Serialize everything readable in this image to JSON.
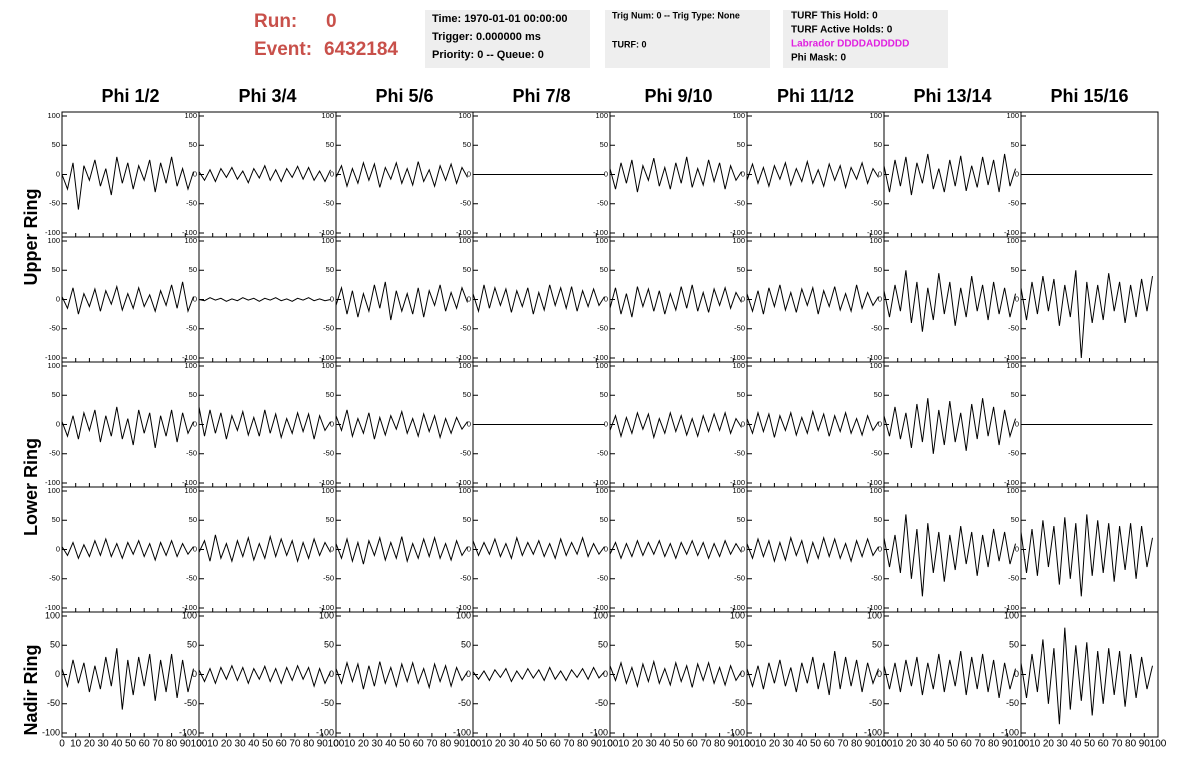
{
  "header": {
    "run_label": "Run:",
    "run": "0",
    "event_label": "Event:",
    "event": "6432184",
    "box1": [
      "Time: 1970-01-01 00:00:00",
      "Trigger: 0.000000 ms",
      "Priority: 0 -- Queue: 0"
    ],
    "box2": [
      "Trig Num: 0 -- Trig Type: None",
      "TURF: 0"
    ],
    "box3": [
      "TURF This Hold: 0",
      "TURF Active Holds: 0",
      "Labrador DDDDADDDDD",
      "Phi Mask: 0"
    ]
  },
  "columns": [
    "Phi 1/2",
    "Phi 3/4",
    "Phi 5/6",
    "Phi 7/8",
    "Phi 9/10",
    "Phi 11/12",
    "Phi 13/14",
    "Phi 15/16"
  ],
  "rings": [
    "Upper Ring",
    "Lower Ring",
    "Nadir Ring"
  ],
  "xlim": [
    0,
    100
  ],
  "ylim": [
    -100,
    100
  ],
  "xticks": [
    0,
    10,
    20,
    30,
    40,
    50,
    60,
    70,
    80,
    90,
    100
  ],
  "yticks": [
    -100,
    -50,
    0,
    50,
    100
  ],
  "x": [
    0,
    4,
    8,
    12,
    16,
    20,
    24,
    28,
    32,
    36,
    40,
    44,
    48,
    52,
    56,
    60,
    64,
    68,
    72,
    76,
    80,
    84,
    88,
    92,
    96
  ],
  "panels": [
    [
      [
        0,
        -25,
        20,
        -60,
        15,
        -10,
        25,
        -20,
        10,
        -35,
        30,
        -15,
        20,
        -25,
        15,
        -10,
        25,
        -30,
        20,
        -15,
        30,
        -20,
        10,
        -25,
        5
      ],
      [
        5,
        -10,
        8,
        -12,
        10,
        -5,
        12,
        -8,
        6,
        -14,
        10,
        -6,
        15,
        -10,
        8,
        -12,
        10,
        -5,
        14,
        -8,
        12,
        -10,
        6,
        -12,
        8
      ],
      [
        -5,
        15,
        -20,
        10,
        -15,
        20,
        -10,
        18,
        -22,
        12,
        -8,
        20,
        -15,
        10,
        -18,
        22,
        -12,
        8,
        -20,
        15,
        -10,
        18,
        -15,
        12,
        -5
      ],
      [
        0,
        0,
        0,
        0,
        0,
        0,
        0,
        0,
        0,
        0,
        0,
        0,
        0,
        0,
        0,
        0,
        0,
        0,
        0,
        0,
        0,
        0,
        0,
        0,
        0
      ],
      [
        10,
        -25,
        20,
        -15,
        25,
        -30,
        15,
        -10,
        28,
        -20,
        12,
        -25,
        20,
        -15,
        30,
        -22,
        10,
        -18,
        25,
        -12,
        20,
        -25,
        15,
        -10,
        5
      ],
      [
        -10,
        18,
        -15,
        12,
        -20,
        15,
        -8,
        20,
        -18,
        10,
        -12,
        22,
        -15,
        8,
        -20,
        18,
        -10,
        15,
        -22,
        12,
        -8,
        20,
        -15,
        10,
        -5
      ],
      [
        15,
        -30,
        25,
        -20,
        30,
        -35,
        20,
        -15,
        35,
        -25,
        10,
        -30,
        25,
        -20,
        32,
        -28,
        15,
        -22,
        30,
        -18,
        25,
        -30,
        35,
        -20,
        10
      ],
      [
        0,
        0,
        0,
        0,
        0,
        0,
        0,
        0,
        0,
        0,
        0,
        0,
        0,
        0,
        0,
        0,
        0,
        0,
        0,
        0,
        0,
        0,
        0,
        0,
        0
      ]
    ],
    [
      [
        5,
        -15,
        20,
        -25,
        10,
        -12,
        18,
        -20,
        15,
        -8,
        22,
        -18,
        10,
        -15,
        20,
        -12,
        8,
        -20,
        15,
        -10,
        25,
        -15,
        30,
        -20,
        5
      ],
      [
        0,
        -2,
        3,
        -1,
        2,
        -3,
        1,
        -2,
        3,
        -1,
        2,
        -3,
        2,
        -1,
        3,
        -2,
        1,
        -3,
        2,
        -1,
        3,
        -2,
        1,
        -2,
        0
      ],
      [
        -10,
        20,
        -25,
        15,
        -30,
        10,
        -20,
        25,
        -15,
        30,
        -35,
        15,
        -20,
        10,
        -25,
        20,
        -30,
        15,
        -10,
        25,
        -20,
        12,
        -15,
        20,
        -5
      ],
      [
        10,
        -20,
        25,
        -15,
        20,
        -10,
        18,
        -22,
        15,
        -12,
        20,
        -25,
        12,
        -18,
        25,
        -10,
        20,
        -15,
        22,
        -20,
        15,
        -12,
        18,
        -10,
        5
      ],
      [
        -15,
        20,
        -25,
        10,
        -30,
        22,
        -12,
        18,
        -20,
        15,
        -25,
        10,
        -18,
        22,
        -15,
        25,
        -20,
        12,
        -22,
        18,
        -10,
        20,
        -15,
        12,
        -5
      ],
      [
        10,
        -20,
        15,
        -25,
        20,
        -12,
        25,
        -18,
        12,
        -22,
        18,
        -10,
        20,
        -25,
        15,
        -12,
        22,
        -18,
        10,
        -20,
        25,
        -15,
        12,
        -10,
        5
      ],
      [
        15,
        -30,
        25,
        -20,
        50,
        -40,
        30,
        -55,
        20,
        -35,
        45,
        -25,
        30,
        -45,
        20,
        -30,
        40,
        -20,
        25,
        -35,
        30,
        -25,
        20,
        -30,
        10
      ],
      [
        20,
        -35,
        30,
        -25,
        40,
        -20,
        35,
        -45,
        25,
        -30,
        50,
        -100,
        30,
        -40,
        25,
        -35,
        45,
        -20,
        30,
        -40,
        25,
        -30,
        35,
        -20,
        40
      ]
    ],
    [
      [
        5,
        -20,
        15,
        -25,
        20,
        -10,
        25,
        -30,
        15,
        -20,
        30,
        -25,
        10,
        -35,
        25,
        -15,
        20,
        -40,
        15,
        -20,
        25,
        -30,
        20,
        -15,
        5
      ],
      [
        30,
        -20,
        25,
        -15,
        20,
        -25,
        15,
        -10,
        22,
        -18,
        12,
        -20,
        25,
        -15,
        18,
        -22,
        10,
        -15,
        20,
        -12,
        18,
        -25,
        15,
        -10,
        5
      ],
      [
        15,
        -10,
        25,
        -20,
        10,
        -15,
        20,
        -25,
        12,
        -18,
        15,
        -8,
        22,
        -15,
        10,
        -20,
        18,
        -12,
        15,
        -22,
        10,
        -15,
        12,
        -8,
        5
      ],
      [
        0,
        0,
        0,
        0,
        0,
        0,
        0,
        0,
        0,
        0,
        0,
        0,
        0,
        0,
        0,
        0,
        0,
        0,
        0,
        0,
        0,
        0,
        0,
        0,
        0
      ],
      [
        -10,
        15,
        -20,
        12,
        -15,
        20,
        -8,
        18,
        -22,
        10,
        -15,
        20,
        -12,
        15,
        -18,
        10,
        -20,
        15,
        -12,
        18,
        -10,
        20,
        -15,
        10,
        -5
      ],
      [
        10,
        -15,
        20,
        -12,
        18,
        -22,
        15,
        -10,
        20,
        -18,
        12,
        -15,
        22,
        -10,
        18,
        -20,
        15,
        -12,
        20,
        -15,
        10,
        -18,
        15,
        -10,
        5
      ],
      [
        15,
        -20,
        30,
        -25,
        20,
        -40,
        35,
        -30,
        45,
        -50,
        25,
        -35,
        40,
        -30,
        20,
        -45,
        35,
        -25,
        45,
        -20,
        30,
        -35,
        25,
        -20,
        10
      ],
      [
        0,
        0,
        0,
        0,
        0,
        0,
        0,
        0,
        0,
        0,
        0,
        0,
        0,
        0,
        0,
        0,
        0,
        0,
        0,
        0,
        0,
        0,
        0,
        0,
        0
      ]
    ],
    [
      [
        5,
        -10,
        12,
        -15,
        8,
        -12,
        15,
        -10,
        18,
        -12,
        10,
        -15,
        12,
        -8,
        15,
        -12,
        10,
        -18,
        12,
        -10,
        15,
        -12,
        10,
        -8,
        5
      ],
      [
        -5,
        15,
        -20,
        25,
        -15,
        10,
        -20,
        15,
        -12,
        20,
        -18,
        10,
        -15,
        22,
        -12,
        18,
        -10,
        15,
        -20,
        12,
        -15,
        18,
        -10,
        12,
        -5
      ],
      [
        10,
        -15,
        18,
        -20,
        12,
        -25,
        15,
        -10,
        20,
        -18,
        12,
        -15,
        22,
        -20,
        10,
        -15,
        18,
        -12,
        20,
        -15,
        10,
        -18,
        15,
        -10,
        5
      ],
      [
        15,
        -10,
        12,
        -8,
        18,
        -12,
        10,
        -15,
        20,
        -10,
        12,
        -8,
        15,
        -12,
        10,
        -15,
        18,
        -10,
        12,
        -8,
        20,
        -12,
        10,
        -8,
        5
      ],
      [
        -8,
        12,
        -15,
        10,
        -12,
        15,
        -10,
        12,
        -8,
        15,
        -12,
        10,
        -15,
        12,
        -8,
        15,
        -10,
        12,
        -15,
        10,
        -12,
        15,
        -8,
        10,
        -5
      ],
      [
        10,
        -15,
        18,
        -12,
        15,
        -20,
        12,
        -18,
        20,
        -10,
        15,
        -22,
        12,
        -15,
        20,
        -12,
        18,
        -15,
        10,
        -20,
        15,
        -12,
        18,
        -10,
        5
      ],
      [
        20,
        -30,
        25,
        -40,
        60,
        -50,
        35,
        -80,
        45,
        -40,
        30,
        -55,
        25,
        -35,
        40,
        -25,
        30,
        -45,
        25,
        -30,
        35,
        -20,
        30,
        -25,
        10
      ],
      [
        30,
        -40,
        35,
        -45,
        50,
        -30,
        40,
        -60,
        55,
        -50,
        45,
        -80,
        60,
        -45,
        50,
        -40,
        45,
        -55,
        40,
        -35,
        45,
        -50,
        40,
        -30,
        20
      ]
    ],
    [
      [
        10,
        -20,
        25,
        -15,
        20,
        -30,
        15,
        -25,
        30,
        -20,
        45,
        -60,
        25,
        -35,
        30,
        -20,
        35,
        -45,
        25,
        -30,
        35,
        -40,
        25,
        -30,
        10
      ],
      [
        8,
        -12,
        10,
        -15,
        12,
        -8,
        15,
        -10,
        12,
        -15,
        10,
        -8,
        14,
        -12,
        10,
        -15,
        12,
        -10,
        15,
        -8,
        12,
        -20,
        10,
        -15,
        5
      ],
      [
        10,
        -15,
        20,
        -12,
        18,
        -25,
        15,
        -20,
        22,
        -15,
        12,
        -20,
        18,
        -12,
        20,
        -15,
        10,
        -22,
        18,
        -12,
        15,
        -20,
        12,
        -10,
        5
      ],
      [
        5,
        -8,
        6,
        -10,
        8,
        -5,
        10,
        -12,
        6,
        -8,
        10,
        -6,
        8,
        -10,
        12,
        -8,
        6,
        -10,
        8,
        -5,
        10,
        -8,
        12,
        -6,
        5
      ],
      [
        15,
        -10,
        20,
        -15,
        12,
        -20,
        18,
        -12,
        22,
        -15,
        10,
        -18,
        20,
        -12,
        15,
        -22,
        18,
        -10,
        20,
        -15,
        12,
        -18,
        15,
        -10,
        5
      ],
      [
        10,
        -20,
        15,
        -25,
        20,
        -15,
        25,
        -20,
        12,
        -30,
        20,
        -15,
        30,
        -25,
        20,
        -35,
        40,
        -25,
        30,
        -20,
        25,
        -30,
        20,
        -15,
        10
      ],
      [
        15,
        -25,
        20,
        -30,
        25,
        -20,
        30,
        -35,
        20,
        -25,
        35,
        -30,
        25,
        -20,
        40,
        -35,
        30,
        -25,
        35,
        -30,
        25,
        -40,
        20,
        -25,
        10
      ],
      [
        20,
        -40,
        35,
        -30,
        60,
        -50,
        45,
        -85,
        80,
        -60,
        50,
        -45,
        55,
        -70,
        40,
        -50,
        45,
        -35,
        40,
        -55,
        35,
        -40,
        30,
        -25,
        15
      ]
    ]
  ]
}
